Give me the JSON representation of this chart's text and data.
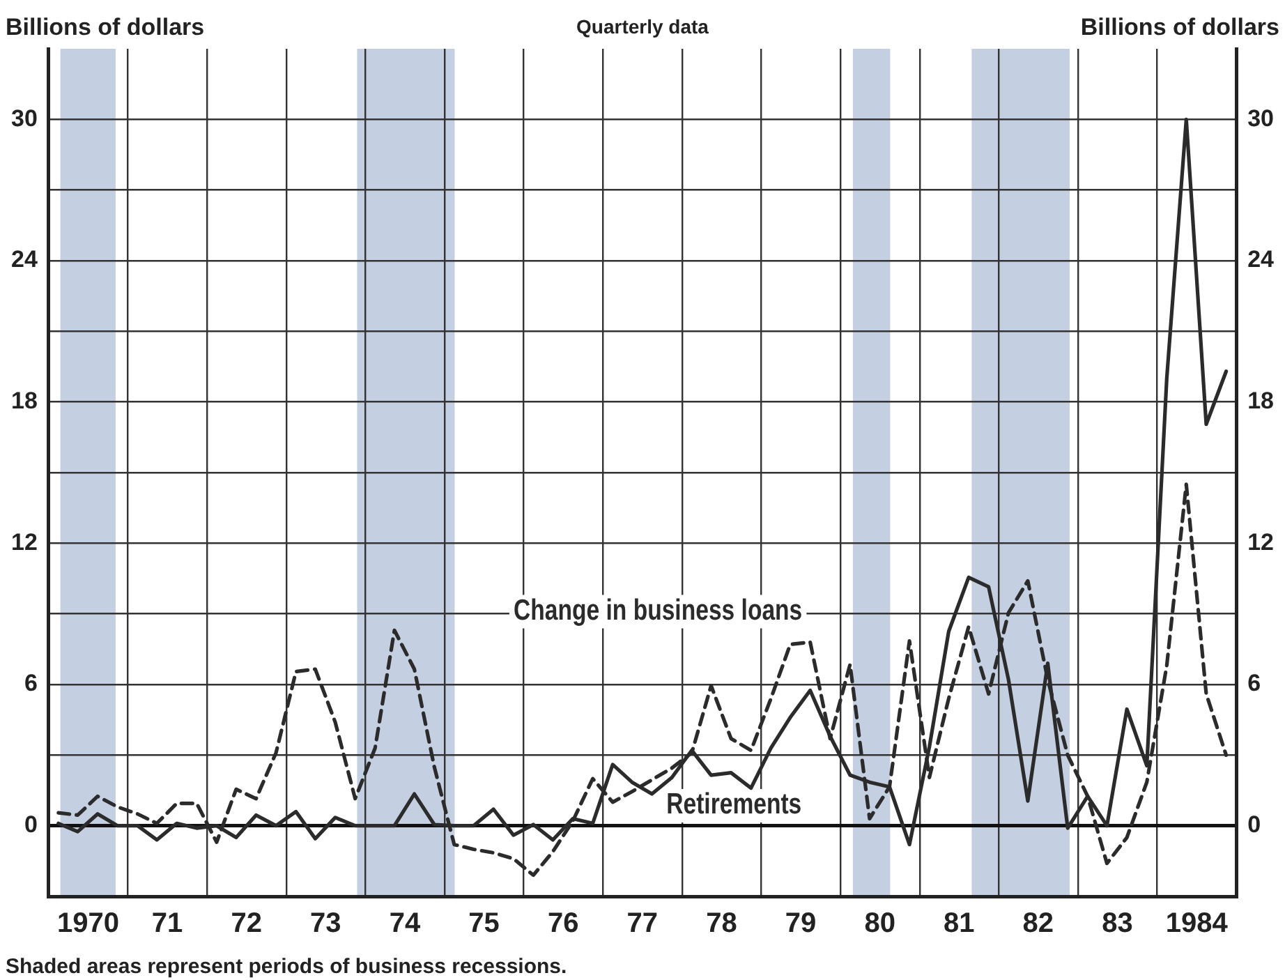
{
  "chart_data": {
    "type": "line",
    "title": "Quarterly data",
    "ylabel": "Billions of dollars",
    "y2label": "Billions of dollars",
    "x": [
      "1970-02-15",
      "1970-05-15",
      "1970-08-15",
      "1970-11-15",
      "1971-02-15",
      "1971-05-15",
      "1971-08-15",
      "1971-11-15",
      "1972-02-15",
      "1972-05-15",
      "1972-08-15",
      "1972-11-15",
      "1973-02-15",
      "1973-05-15",
      "1973-08-15",
      "1973-11-15",
      "1974-02-15",
      "1974-05-15",
      "1974-08-15",
      "1974-11-15",
      "1975-02-15",
      "1975-05-15",
      "1975-08-15",
      "1975-11-15",
      "1976-02-15",
      "1976-05-15",
      "1976-08-15",
      "1976-11-15",
      "1977-02-15",
      "1977-05-15",
      "1977-08-15",
      "1977-11-15",
      "1978-02-15",
      "1978-05-15",
      "1978-08-15",
      "1978-11-15",
      "1979-02-15",
      "1979-05-15",
      "1979-08-15",
      "1979-11-15",
      "1980-02-15",
      "1980-05-15",
      "1980-08-15",
      "1980-11-15",
      "1981-02-15",
      "1981-05-15",
      "1981-08-15",
      "1981-11-15",
      "1982-02-15",
      "1982-05-15",
      "1982-08-15",
      "1982-11-15",
      "1983-02-15",
      "1983-05-15",
      "1983-08-15",
      "1983-11-15",
      "1984-02-15",
      "1984-05-15",
      "1984-08-15",
      "1984-11-15"
    ],
    "series": [
      {
        "name": "Change in business loans",
        "color": "#2b2b2b",
        "line_style": "dashed",
        "values": [
          0.55,
          0.45,
          1.25,
          0.8,
          0.5,
          0.1,
          0.95,
          0.95,
          -0.7,
          1.55,
          1.15,
          3.1,
          6.55,
          6.65,
          4.4,
          1.15,
          3.3,
          8.3,
          6.65,
          2.5,
          -0.8,
          -1.0,
          -1.15,
          -1.4,
          -2.1,
          -1.1,
          0.2,
          2.0,
          1.0,
          1.45,
          1.95,
          2.45,
          3.1,
          5.95,
          3.7,
          3.2,
          5.4,
          7.7,
          7.8,
          3.7,
          6.85,
          0.3,
          1.65,
          7.85,
          2.05,
          5.4,
          8.45,
          5.6,
          9.05,
          10.4,
          6.2,
          3.0,
          1.25,
          -1.6,
          -0.5,
          1.85,
          6.8,
          14.5,
          5.6,
          3.0
        ]
      },
      {
        "name": "Retirements",
        "color": "#2b2b2b",
        "line_style": "solid",
        "values": [
          0.1,
          -0.25,
          0.5,
          0,
          0,
          -0.6,
          0.1,
          -0.1,
          0,
          -0.5,
          0.45,
          0,
          0.6,
          -0.55,
          0.35,
          0,
          0,
          0,
          1.35,
          0.05,
          0,
          0,
          0.7,
          -0.4,
          0.05,
          -0.6,
          0.3,
          0.1,
          2.6,
          1.85,
          1.35,
          2.05,
          3.2,
          2.15,
          2.25,
          1.6,
          3.3,
          4.6,
          5.75,
          3.8,
          2.15,
          1.85,
          1.65,
          -0.8,
          3.35,
          8.25,
          10.55,
          10.15,
          6.2,
          1.05,
          6.9,
          -0.1,
          1.25,
          0,
          4.95,
          2.55,
          19,
          30,
          17.05,
          19.3
        ]
      }
    ],
    "xlim": [
      "1970-01-01",
      "1985-01-01"
    ],
    "xticks": [
      {
        "value": "1970-07-02",
        "label": "1970"
      },
      {
        "value": "1971-01-01",
        "label": null
      },
      {
        "value": "1971-07-02",
        "label": "71"
      },
      {
        "value": "1972-01-01",
        "label": null
      },
      {
        "value": "1972-07-02",
        "label": "72"
      },
      {
        "value": "1973-01-01",
        "label": null
      },
      {
        "value": "1973-07-02",
        "label": "73"
      },
      {
        "value": "1974-01-01",
        "label": null
      },
      {
        "value": "1974-07-02",
        "label": "74"
      },
      {
        "value": "1975-01-01",
        "label": null
      },
      {
        "value": "1975-07-02",
        "label": "75"
      },
      {
        "value": "1976-01-01",
        "label": null
      },
      {
        "value": "1976-07-02",
        "label": "76"
      },
      {
        "value": "1977-01-01",
        "label": null
      },
      {
        "value": "1977-07-02",
        "label": "77"
      },
      {
        "value": "1978-01-01",
        "label": null
      },
      {
        "value": "1978-07-02",
        "label": "78"
      },
      {
        "value": "1979-01-01",
        "label": null
      },
      {
        "value": "1979-07-02",
        "label": "79"
      },
      {
        "value": "1980-01-01",
        "label": null
      },
      {
        "value": "1980-07-02",
        "label": "80"
      },
      {
        "value": "1981-01-01",
        "label": null
      },
      {
        "value": "1981-07-02",
        "label": "81"
      },
      {
        "value": "1982-01-01",
        "label": null
      },
      {
        "value": "1982-07-02",
        "label": "82"
      },
      {
        "value": "1983-01-01",
        "label": null
      },
      {
        "value": "1983-07-02",
        "label": "83"
      },
      {
        "value": "1984-01-01",
        "label": null
      },
      {
        "value": "1984-07-02",
        "label": "1984"
      }
    ],
    "ylim": [
      -3,
      33
    ],
    "yticks": [
      0,
      {
        "value": 3,
        "label": null
      },
      6,
      {
        "value": 9,
        "label": null
      },
      12,
      {
        "value": 15,
        "label": null
      },
      18,
      {
        "value": 21,
        "label": null
      },
      24,
      {
        "value": 27,
        "label": null
      },
      30
    ],
    "y2lim": [
      -3,
      33
    ],
    "y2ticks": [
      0,
      6,
      12,
      18,
      24,
      30
    ],
    "bands": [
      {
        "axis": "x",
        "from": "1970-02-24",
        "to": "1970-11-06",
        "color": "#c5cfe2"
      },
      {
        "axis": "x",
        "from": "1973-11-24",
        "to": "1975-02-17",
        "color": "#c5cfe2"
      },
      {
        "axis": "x",
        "from": "1980-02-28",
        "to": "1980-08-18",
        "color": "#c5cfe2"
      },
      {
        "axis": "x",
        "from": "1981-08-29",
        "to": "1982-11-24",
        "color": "#c5cfe2"
      }
    ],
    "annotations": [
      "Shaded areas represent periods of business recessions."
    ],
    "grid": true,
    "marker": "none"
  }
}
